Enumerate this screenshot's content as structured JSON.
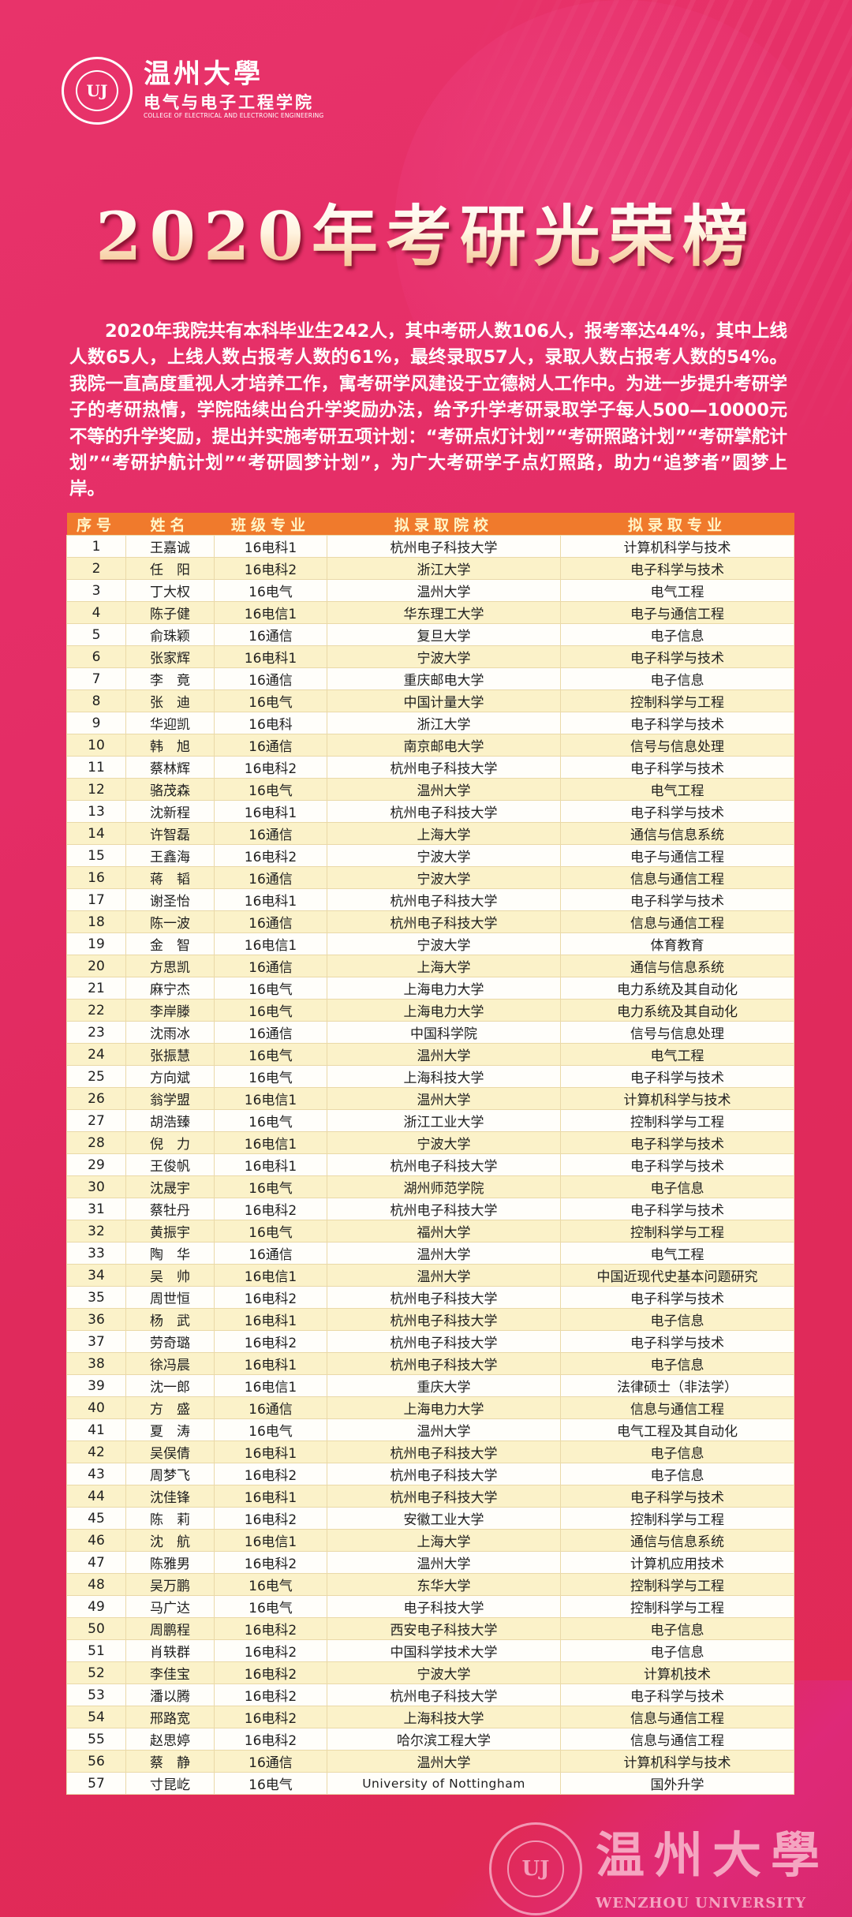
{
  "header": {
    "logo_cn": "温州大學",
    "college_cn": "电气与电子工程学院",
    "college_en": "COLLEGE OF ELECTRICAL AND ELECTRONIC ENGINEERING",
    "seal_text": "UJ"
  },
  "title": "2020年考研光荣榜",
  "intro": "2020年我院共有本科毕业生242人，其中考研人数106人，报考率达44%，其中上线人数65人，上线人数占报考人数的61%，最终录取57人，录取人数占报考人数的54%。我院一直高度重视人才培养工作，寓考研学风建设于立德树人工作中。为进一步提升考研学子的考研热情，学院陆续出台升学奖励办法，给予升学考研录取学子每人500—10000元不等的升学奖励，提出并实施考研五项计划：“考研点灯计划”“考研照路计划”“考研掌舵计划”“考研护航计划”“考研圆梦计划”，为广大考研学子点灯照路，助力“追梦者”圆梦上岸。",
  "colors": {
    "header_bg": "#f07a2c",
    "row_alt": "#fbf2c9",
    "background": "#e42d66"
  },
  "table": {
    "columns": [
      "序号",
      "姓名",
      "班级专业",
      "拟录取院校",
      "拟录取专业"
    ],
    "rows": [
      [
        "1",
        "王嘉诚",
        "16电科1",
        "杭州电子科技大学",
        "计算机科学与技术"
      ],
      [
        "2",
        "任　阳",
        "16电科2",
        "浙江大学",
        "电子科学与技术"
      ],
      [
        "3",
        "丁大权",
        "16电气",
        "温州大学",
        "电气工程"
      ],
      [
        "4",
        "陈子健",
        "16电信1",
        "华东理工大学",
        "电子与通信工程"
      ],
      [
        "5",
        "俞珠颖",
        "16通信",
        "复旦大学",
        "电子信息"
      ],
      [
        "6",
        "张家辉",
        "16电科1",
        "宁波大学",
        "电子科学与技术"
      ],
      [
        "7",
        "李　竟",
        "16通信",
        "重庆邮电大学",
        "电子信息"
      ],
      [
        "8",
        "张　迪",
        "16电气",
        "中国计量大学",
        "控制科学与工程"
      ],
      [
        "9",
        "华迎凯",
        "16电科",
        "浙江大学",
        "电子科学与技术"
      ],
      [
        "10",
        "韩　旭",
        "16通信",
        "南京邮电大学",
        "信号与信息处理"
      ],
      [
        "11",
        "蔡林辉",
        "16电科2",
        "杭州电子科技大学",
        "电子科学与技术"
      ],
      [
        "12",
        "骆茂森",
        "16电气",
        "温州大学",
        "电气工程"
      ],
      [
        "13",
        "沈新程",
        "16电科1",
        "杭州电子科技大学",
        "电子科学与技术"
      ],
      [
        "14",
        "许智磊",
        "16通信",
        "上海大学",
        "通信与信息系统"
      ],
      [
        "15",
        "王鑫海",
        "16电科2",
        "宁波大学",
        "电子与通信工程"
      ],
      [
        "16",
        "蒋　韬",
        "16通信",
        "宁波大学",
        "信息与通信工程"
      ],
      [
        "17",
        "谢圣怡",
        "16电科1",
        "杭州电子科技大学",
        "电子科学与技术"
      ],
      [
        "18",
        "陈一波",
        "16通信",
        "杭州电子科技大学",
        "信息与通信工程"
      ],
      [
        "19",
        "金　智",
        "16电信1",
        "宁波大学",
        "体育教育"
      ],
      [
        "20",
        "方思凯",
        "16通信",
        "上海大学",
        "通信与信息系统"
      ],
      [
        "21",
        "麻宁杰",
        "16电气",
        "上海电力大学",
        "电力系统及其自动化"
      ],
      [
        "22",
        "李岸滕",
        "16电气",
        "上海电力大学",
        "电力系统及其自动化"
      ],
      [
        "23",
        "沈雨冰",
        "16通信",
        "中国科学院",
        "信号与信息处理"
      ],
      [
        "24",
        "张振慧",
        "16电气",
        "温州大学",
        "电气工程"
      ],
      [
        "25",
        "方向斌",
        "16电气",
        "上海科技大学",
        "电子科学与技术"
      ],
      [
        "26",
        "翁学盟",
        "16电信1",
        "温州大学",
        "计算机科学与技术"
      ],
      [
        "27",
        "胡浩臻",
        "16电气",
        "浙江工业大学",
        "控制科学与工程"
      ],
      [
        "28",
        "倪　力",
        "16电信1",
        "宁波大学",
        "电子科学与技术"
      ],
      [
        "29",
        "王俊帆",
        "16电科1",
        "杭州电子科技大学",
        "电子科学与技术"
      ],
      [
        "30",
        "沈晟宇",
        "16电气",
        "湖州师范学院",
        "电子信息"
      ],
      [
        "31",
        "蔡牡丹",
        "16电科2",
        "杭州电子科技大学",
        "电子科学与技术"
      ],
      [
        "32",
        "黄振宇",
        "16电气",
        "福州大学",
        "控制科学与工程"
      ],
      [
        "33",
        "陶　华",
        "16通信",
        "温州大学",
        "电气工程"
      ],
      [
        "34",
        "吴　帅",
        "16电信1",
        "温州大学",
        "中国近现代史基本问题研究"
      ],
      [
        "35",
        "周世恒",
        "16电科2",
        "杭州电子科技大学",
        "电子科学与技术"
      ],
      [
        "36",
        "杨　武",
        "16电科1",
        "杭州电子科技大学",
        "电子信息"
      ],
      [
        "37",
        "劳奇璐",
        "16电科2",
        "杭州电子科技大学",
        "电子科学与技术"
      ],
      [
        "38",
        "徐冯晨",
        "16电科1",
        "杭州电子科技大学",
        "电子信息"
      ],
      [
        "39",
        "沈一郎",
        "16电信1",
        "重庆大学",
        "法律硕士（非法学）"
      ],
      [
        "40",
        "方　盛",
        "16通信",
        "上海电力大学",
        "信息与通信工程"
      ],
      [
        "41",
        "夏　涛",
        "16电气",
        "温州大学",
        "电气工程及其自动化"
      ],
      [
        "42",
        "吴俣倩",
        "16电科1",
        "杭州电子科技大学",
        "电子信息"
      ],
      [
        "43",
        "周梦飞",
        "16电科2",
        "杭州电子科技大学",
        "电子信息"
      ],
      [
        "44",
        "沈佳锋",
        "16电科1",
        "杭州电子科技大学",
        "电子科学与技术"
      ],
      [
        "45",
        "陈　莉",
        "16电科2",
        "安徽工业大学",
        "控制科学与工程"
      ],
      [
        "46",
        "沈　航",
        "16电信1",
        "上海大学",
        "通信与信息系统"
      ],
      [
        "47",
        "陈雅男",
        "16电科2",
        "温州大学",
        "计算机应用技术"
      ],
      [
        "48",
        "吴万鹏",
        "16电气",
        "东华大学",
        "控制科学与工程"
      ],
      [
        "49",
        "马广达",
        "16电气",
        "电子科技大学",
        "控制科学与工程"
      ],
      [
        "50",
        "周鹏程",
        "16电科2",
        "西安电子科技大学",
        "电子信息"
      ],
      [
        "51",
        "肖轶群",
        "16电科2",
        "中国科学技术大学",
        "电子信息"
      ],
      [
        "52",
        "李佳宝",
        "16电科2",
        "宁波大学",
        "计算机技术"
      ],
      [
        "53",
        "潘以腾",
        "16电科2",
        "杭州电子科技大学",
        "电子科学与技术"
      ],
      [
        "54",
        "邢路宽",
        "16电科2",
        "上海科技大学",
        "信息与通信工程"
      ],
      [
        "55",
        "赵思婷",
        "16电科2",
        "哈尔滨工程大学",
        "信息与通信工程"
      ],
      [
        "56",
        "蔡　静",
        "16通信",
        "温州大学",
        "计算机科学与技术"
      ],
      [
        "57",
        "寸昆屹",
        "16电气",
        "University of Nottingham",
        "国外升学"
      ]
    ]
  },
  "footer": {
    "logo_cn": "温州大學",
    "logo_en": "WENZHOU UNIVERSITY",
    "seal_text": "UJ"
  }
}
